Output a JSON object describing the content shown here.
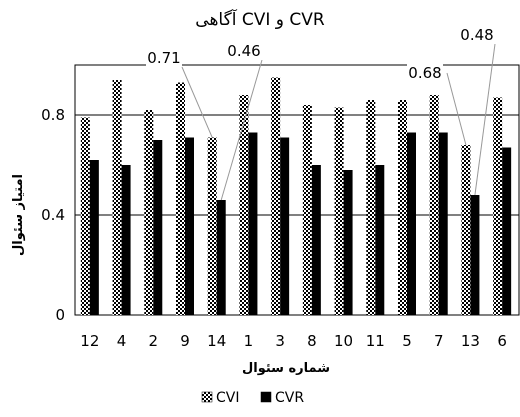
{
  "chart_data": {
    "type": "bar",
    "title": "CVR و CVI آگاهی",
    "xlabel": "شماره سئوال",
    "ylabel": "امتیاز سئوال",
    "ylim": [
      0,
      1
    ],
    "yticks": [
      "0",
      "0.4",
      "0.8"
    ],
    "ytick_values": [
      0,
      0.4,
      0.8
    ],
    "grid": true,
    "legend_position": "bottom",
    "categories": [
      "12",
      "4",
      "2",
      "9",
      "14",
      "1",
      "3",
      "8",
      "10",
      "11",
      "5",
      "7",
      "13",
      "6"
    ],
    "series": [
      {
        "name": "CVI",
        "color": "#000000",
        "pattern": "checker",
        "values": [
          0.79,
          0.94,
          0.82,
          0.93,
          0.71,
          0.88,
          0.95,
          0.84,
          0.83,
          0.86,
          0.86,
          0.88,
          0.68,
          0.87
        ]
      },
      {
        "name": "CVR",
        "color": "#000000",
        "pattern": "solid",
        "values": [
          0.62,
          0.6,
          0.7,
          0.71,
          0.46,
          0.73,
          0.71,
          0.6,
          0.58,
          0.6,
          0.73,
          0.73,
          0.48,
          0.67
        ]
      }
    ],
    "annotations": [
      {
        "text": "0.71",
        "category": "14",
        "series": "CVI"
      },
      {
        "text": "0.46",
        "category": "14",
        "series": "CVR"
      },
      {
        "text": "0.68",
        "category": "13",
        "series": "CVI"
      },
      {
        "text": "0.48",
        "category": "13",
        "series": "CVR"
      }
    ]
  }
}
